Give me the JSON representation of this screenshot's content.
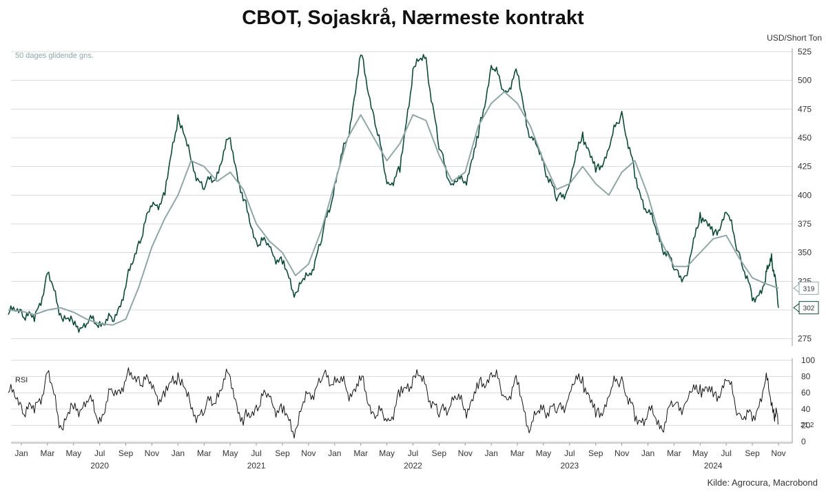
{
  "title": "CBOT, Sojaskrå, Nærmeste kontrakt",
  "unit": "USD/Short Ton",
  "source": "Kilde: Agrocura, Macrobond",
  "colors": {
    "price": "#0d4a35",
    "ma": "#8fa6a6",
    "rsi": "#111111",
    "grid": "#d9d9d9"
  },
  "chart_data": [
    {
      "type": "line",
      "title": "CBOT, Sojaskrå, Nærmeste kontrakt",
      "ylabel": "USD/Short Ton",
      "ylim": [
        270,
        525
      ],
      "yticks": [
        275,
        300,
        325,
        350,
        375,
        400,
        425,
        450,
        475,
        500,
        525
      ],
      "grid": true,
      "x_range": [
        "2020-01",
        "2024-11"
      ],
      "series": [
        {
          "name": "",
          "color": "#0d4a35",
          "points": [
            [
              "2019-12",
              296
            ],
            [
              "2020-01",
              300
            ],
            [
              "2020-02",
              290
            ],
            [
              "2020-03",
              332
            ],
            [
              "2020-04",
              297
            ],
            [
              "2020-05",
              287
            ],
            [
              "2020-06",
              288
            ],
            [
              "2020-07",
              290
            ],
            [
              "2020-08",
              290
            ],
            [
              "2020-09",
              320
            ],
            [
              "2020-10",
              360
            ],
            [
              "2020-11",
              390
            ],
            [
              "2020-12",
              400
            ],
            [
              "2021-01",
              470
            ],
            [
              "2021-02",
              430
            ],
            [
              "2021-03",
              405
            ],
            [
              "2021-04",
              420
            ],
            [
              "2021-05",
              450
            ],
            [
              "2021-06",
              395
            ],
            [
              "2021-07",
              360
            ],
            [
              "2021-08",
              355
            ],
            [
              "2021-09",
              340
            ],
            [
              "2021-10",
              315
            ],
            [
              "2021-11",
              330
            ],
            [
              "2021-12",
              360
            ],
            [
              "2022-01",
              410
            ],
            [
              "2022-02",
              450
            ],
            [
              "2022-03",
              522
            ],
            [
              "2022-04",
              470
            ],
            [
              "2022-05",
              410
            ],
            [
              "2022-06",
              420
            ],
            [
              "2022-07",
              510
            ],
            [
              "2022-08",
              520
            ],
            [
              "2022-09",
              440
            ],
            [
              "2022-10",
              410
            ],
            [
              "2022-11",
              412
            ],
            [
              "2022-12",
              450
            ],
            [
              "2023-01",
              513
            ],
            [
              "2023-02",
              490
            ],
            [
              "2023-03",
              505
            ],
            [
              "2023-04",
              450
            ],
            [
              "2023-05",
              430
            ],
            [
              "2023-06",
              395
            ],
            [
              "2023-07",
              410
            ],
            [
              "2023-08",
              455
            ],
            [
              "2023-09",
              420
            ],
            [
              "2023-10",
              440
            ],
            [
              "2023-11",
              473
            ],
            [
              "2023-12",
              415
            ],
            [
              "2024-01",
              385
            ],
            [
              "2024-02",
              360
            ],
            [
              "2024-03",
              335
            ],
            [
              "2024-04",
              330
            ],
            [
              "2024-05",
              385
            ],
            [
              "2024-06",
              365
            ],
            [
              "2024-07",
              385
            ],
            [
              "2024-08",
              350
            ],
            [
              "2024-09",
              308
            ],
            [
              "2024-10",
              325
            ],
            [
              "2024-10-15",
              349
            ],
            [
              "2024-11",
              302
            ]
          ]
        },
        {
          "name": "50 dages glidende gns.",
          "color": "#8fa6a6",
          "points": [
            [
              "2019-12",
              300
            ],
            [
              "2020-01",
              299
            ],
            [
              "2020-02",
              296
            ],
            [
              "2020-03",
              300
            ],
            [
              "2020-04",
              302
            ],
            [
              "2020-05",
              298
            ],
            [
              "2020-06",
              292
            ],
            [
              "2020-07",
              288
            ],
            [
              "2020-08",
              287
            ],
            [
              "2020-09",
              292
            ],
            [
              "2020-10",
              320
            ],
            [
              "2020-11",
              355
            ],
            [
              "2020-12",
              380
            ],
            [
              "2021-01",
              400
            ],
            [
              "2021-02",
              430
            ],
            [
              "2021-03",
              425
            ],
            [
              "2021-04",
              412
            ],
            [
              "2021-05",
              420
            ],
            [
              "2021-06",
              405
            ],
            [
              "2021-07",
              375
            ],
            [
              "2021-08",
              360
            ],
            [
              "2021-09",
              350
            ],
            [
              "2021-10",
              330
            ],
            [
              "2021-11",
              340
            ],
            [
              "2021-12",
              370
            ],
            [
              "2022-01",
              410
            ],
            [
              "2022-02",
              450
            ],
            [
              "2022-03",
              470
            ],
            [
              "2022-04",
              450
            ],
            [
              "2022-05",
              430
            ],
            [
              "2022-06",
              445
            ],
            [
              "2022-07",
              470
            ],
            [
              "2022-08",
              465
            ],
            [
              "2022-09",
              435
            ],
            [
              "2022-10",
              412
            ],
            [
              "2022-11",
              420
            ],
            [
              "2022-12",
              460
            ],
            [
              "2023-01",
              480
            ],
            [
              "2023-02",
              490
            ],
            [
              "2023-03",
              480
            ],
            [
              "2023-04",
              460
            ],
            [
              "2023-05",
              430
            ],
            [
              "2023-06",
              405
            ],
            [
              "2023-07",
              410
            ],
            [
              "2023-08",
              425
            ],
            [
              "2023-09",
              410
            ],
            [
              "2023-10",
              400
            ],
            [
              "2023-11",
              420
            ],
            [
              "2023-12",
              430
            ],
            [
              "2024-01",
              400
            ],
            [
              "2024-02",
              360
            ],
            [
              "2024-03",
              338
            ],
            [
              "2024-04",
              338
            ],
            [
              "2024-05",
              350
            ],
            [
              "2024-06",
              362
            ],
            [
              "2024-07",
              365
            ],
            [
              "2024-08",
              345
            ],
            [
              "2024-09",
              328
            ],
            [
              "2024-10",
              323
            ],
            [
              "2024-11",
              319
            ]
          ]
        }
      ],
      "end_labels": [
        {
          "series": "50 dages glidende gns.",
          "value": 319,
          "text": "319"
        },
        {
          "series": "price",
          "value": 302,
          "text": "302"
        }
      ]
    },
    {
      "type": "line",
      "title": "RSI",
      "ylim": [
        0,
        100
      ],
      "yticks": [
        0,
        20,
        40,
        60,
        80,
        100
      ],
      "grid": true,
      "series": [
        {
          "name": "RSI",
          "color": "#111111",
          "points": [
            [
              "2019-12",
              60
            ],
            [
              "2020-01",
              45
            ],
            [
              "2020-02",
              35
            ],
            [
              "2020-03",
              85
            ],
            [
              "2020-04",
              20
            ],
            [
              "2020-05",
              40
            ],
            [
              "2020-06",
              50
            ],
            [
              "2020-07",
              30
            ],
            [
              "2020-08",
              60
            ],
            [
              "2020-09",
              75
            ],
            [
              "2020-10",
              80
            ],
            [
              "2020-11",
              65
            ],
            [
              "2020-12",
              55
            ],
            [
              "2021-01",
              85
            ],
            [
              "2021-02",
              40
            ],
            [
              "2021-03",
              35
            ],
            [
              "2021-04",
              60
            ],
            [
              "2021-05",
              80
            ],
            [
              "2021-06",
              20
            ],
            [
              "2021-07",
              45
            ],
            [
              "2021-08",
              55
            ],
            [
              "2021-09",
              35
            ],
            [
              "2021-10",
              15
            ],
            [
              "2021-11",
              60
            ],
            [
              "2021-12",
              75
            ],
            [
              "2022-01",
              80
            ],
            [
              "2022-02",
              60
            ],
            [
              "2022-03",
              75
            ],
            [
              "2022-04",
              35
            ],
            [
              "2022-05",
              25
            ],
            [
              "2022-06",
              55
            ],
            [
              "2022-07",
              80
            ],
            [
              "2022-08",
              70
            ],
            [
              "2022-09",
              30
            ],
            [
              "2022-10",
              55
            ],
            [
              "2022-11",
              40
            ],
            [
              "2022-12",
              65
            ],
            [
              "2023-01",
              85
            ],
            [
              "2023-02",
              55
            ],
            [
              "2023-03",
              70
            ],
            [
              "2023-04",
              15
            ],
            [
              "2023-05",
              45
            ],
            [
              "2023-06",
              35
            ],
            [
              "2023-07",
              60
            ],
            [
              "2023-08",
              80
            ],
            [
              "2023-09",
              30
            ],
            [
              "2023-10",
              55
            ],
            [
              "2023-11",
              80
            ],
            [
              "2023-12",
              25
            ],
            [
              "2024-01",
              35
            ],
            [
              "2024-02",
              20
            ],
            [
              "2024-03",
              45
            ],
            [
              "2024-04",
              50
            ],
            [
              "2024-05",
              70
            ],
            [
              "2024-06",
              55
            ],
            [
              "2024-07",
              75
            ],
            [
              "2024-08",
              35
            ],
            [
              "2024-09",
              25
            ],
            [
              "2024-10",
              75
            ],
            [
              "2024-10-20",
              40
            ],
            [
              "2024-11",
              21.2
            ]
          ]
        }
      ],
      "end_labels": [
        {
          "series": "RSI",
          "value": 21.2,
          "text": "21,2"
        }
      ]
    }
  ],
  "x_axis": {
    "month_ticks": [
      [
        "2020-01",
        "Jan"
      ],
      [
        "2020-03",
        "Mar"
      ],
      [
        "2020-05",
        "May"
      ],
      [
        "2020-07",
        "Jul"
      ],
      [
        "2020-09",
        "Sep"
      ],
      [
        "2020-11",
        "Nov"
      ],
      [
        "2021-01",
        "Jan"
      ],
      [
        "2021-03",
        "Mar"
      ],
      [
        "2021-05",
        "May"
      ],
      [
        "2021-07",
        "Jul"
      ],
      [
        "2021-09",
        "Sep"
      ],
      [
        "2021-11",
        "Nov"
      ],
      [
        "2022-01",
        "Jan"
      ],
      [
        "2022-03",
        "Mar"
      ],
      [
        "2022-05",
        "May"
      ],
      [
        "2022-07",
        "Jul"
      ],
      [
        "2022-09",
        "Sep"
      ],
      [
        "2022-11",
        "Nov"
      ],
      [
        "2023-01",
        "Jan"
      ],
      [
        "2023-03",
        "Mar"
      ],
      [
        "2023-05",
        "May"
      ],
      [
        "2023-07",
        "Jul"
      ],
      [
        "2023-09",
        "Sep"
      ],
      [
        "2023-11",
        "Nov"
      ],
      [
        "2024-01",
        "Jan"
      ],
      [
        "2024-03",
        "Mar"
      ],
      [
        "2024-05",
        "May"
      ],
      [
        "2024-07",
        "Jul"
      ],
      [
        "2024-09",
        "Sep"
      ],
      [
        "2024-11",
        "Nov"
      ]
    ],
    "year_labels": [
      [
        "2020-07",
        "2020"
      ],
      [
        "2021-07",
        "2021"
      ],
      [
        "2022-07",
        "2022"
      ],
      [
        "2023-07",
        "2023"
      ],
      [
        "2024-06",
        "2024"
      ]
    ]
  }
}
